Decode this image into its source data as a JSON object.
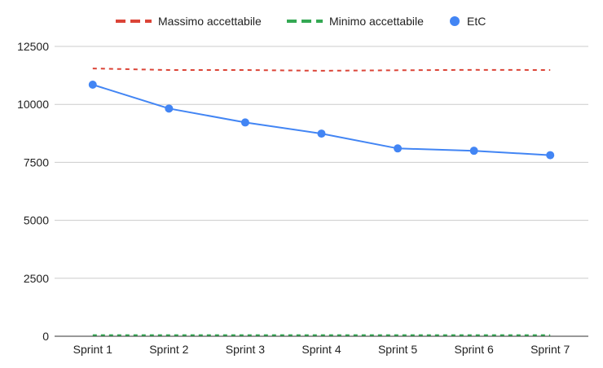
{
  "chart_data": {
    "type": "line",
    "title": "",
    "xlabel": "",
    "ylabel": "",
    "categories": [
      "Sprint 1",
      "Sprint 2",
      "Sprint 3",
      "Sprint 4",
      "Sprint 5",
      "Sprint 6",
      "Sprint 7"
    ],
    "ylim": [
      0,
      12500
    ],
    "yticks": [
      "0",
      "2500",
      "5000",
      "7500",
      "10000",
      "12500"
    ],
    "grid": true,
    "legend_position": "top",
    "series": [
      {
        "name": "Massimo accettabile",
        "style": "dashed",
        "markers": false,
        "color": "#db4437",
        "values": [
          11550,
          11480,
          11480,
          11450,
          11470,
          11490,
          11480
        ]
      },
      {
        "name": "Minimo accettabile",
        "style": "dashed",
        "markers": false,
        "color": "#34a853",
        "values": [
          50,
          50,
          50,
          50,
          50,
          50,
          50
        ]
      },
      {
        "name": "EtC",
        "style": "solid",
        "markers": true,
        "color": "#4285f4",
        "values": [
          10850,
          9820,
          9220,
          8740,
          8100,
          8000,
          7810
        ]
      }
    ]
  }
}
